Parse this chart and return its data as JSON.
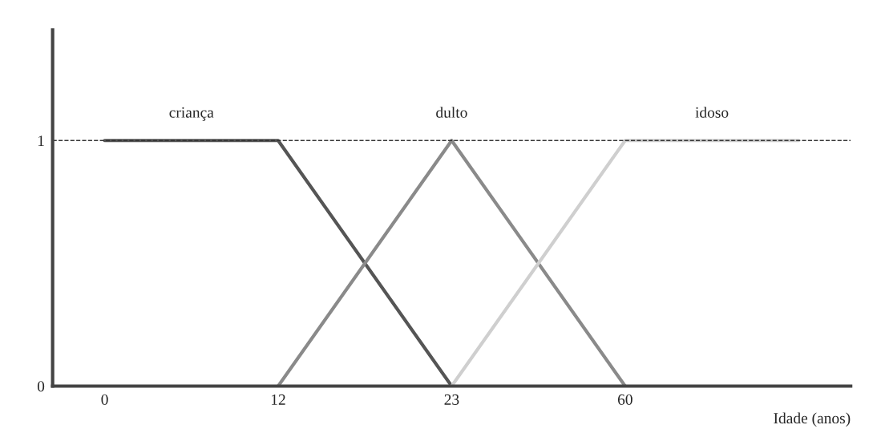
{
  "chart_data": {
    "type": "line",
    "xlabel": "Idade (anos)",
    "categories": [
      "0",
      "12",
      "23",
      "60",
      null
    ],
    "series": [
      {
        "name": "criança",
        "color": "#555555",
        "values": [
          1,
          1,
          0,
          null,
          null
        ]
      },
      {
        "name": "dulto",
        "color": "#8a8a8a",
        "values": [
          null,
          0,
          1,
          0,
          null
        ]
      },
      {
        "name": "idoso",
        "color": "#cfcfcf",
        "values": [
          null,
          null,
          0,
          1,
          1
        ]
      }
    ],
    "ylim": [
      0,
      1.45
    ],
    "yticks": [
      0,
      1
    ],
    "ref_lines": [
      {
        "axis": "y",
        "value": 1,
        "line_style": "dashed",
        "color": "#333333"
      }
    ],
    "grid": false,
    "legend": false,
    "marker": "none",
    "line_style": "solid"
  }
}
